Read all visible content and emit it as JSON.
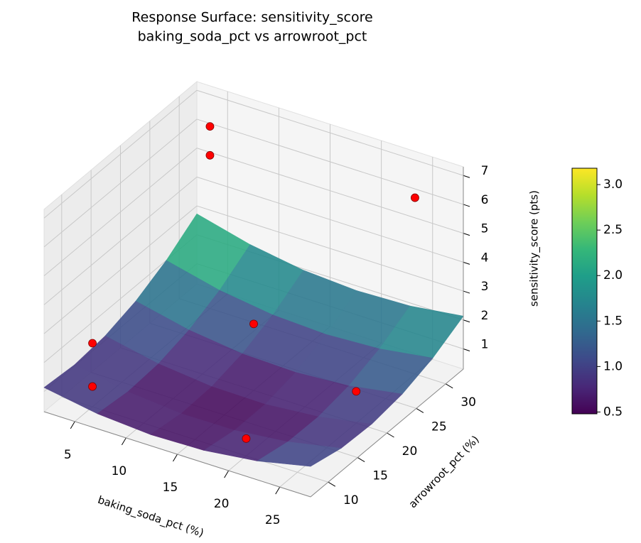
{
  "chart_data": {
    "type": "surface3d",
    "title": [
      "Response Surface: sensitivity_score",
      "baking_soda_pct vs arrowroot_pct"
    ],
    "xlabel": "baking_soda_pct (%)",
    "ylabel": "arrowroot_pct (%)",
    "zlabel": "sensitivity_score (pts)",
    "xlim": [
      2,
      28
    ],
    "ylim": [
      7,
      33
    ],
    "zlim": [
      0.3,
      7.3
    ],
    "xticks": [
      5,
      10,
      15,
      20,
      25
    ],
    "yticks": [
      10,
      15,
      20,
      25,
      30
    ],
    "zticks": [
      1,
      2,
      3,
      4,
      5,
      6,
      7
    ],
    "surface": {
      "x": [
        2,
        7.2,
        12.4,
        17.6,
        22.8,
        28
      ],
      "y": [
        7,
        12.2,
        17.4,
        22.6,
        27.8,
        33
      ],
      "z": [
        [
          1.135,
          0.821,
          0.686,
          0.73,
          0.953,
          1.353
        ],
        [
          1.042,
          0.696,
          0.528,
          0.54,
          0.73,
          1.098
        ],
        [
          1.155,
          0.777,
          0.577,
          0.555,
          0.713,
          1.049
        ],
        [
          1.473,
          1.062,
          0.83,
          0.776,
          0.902,
          1.205
        ],
        [
          1.997,
          1.554,
          1.289,
          1.203,
          1.296,
          1.567
        ],
        [
          2.726,
          2.251,
          1.953,
          1.835,
          1.895,
          2.134
        ]
      ],
      "colormap": "viridis"
    },
    "points": {
      "color": "#ff0000",
      "x": [
        5,
        5,
        25,
        15,
        5,
        5,
        20,
        25
      ],
      "y": [
        30,
        30,
        30,
        20,
        10,
        10,
        10,
        20
      ],
      "z": [
        6.6,
        5.6,
        6.4,
        2.6,
        2.5,
        1.0,
        0.9,
        1.4
      ]
    },
    "colorbar": {
      "lim": [
        0.48,
        3.18
      ],
      "ticks": [
        0.5,
        {
          "value": 1.0,
          "label": "1.0"
        },
        1.5,
        {
          "value": 2.0,
          "label": "2.0"
        },
        2.5,
        {
          "value": 3.0,
          "label": "3.0"
        }
      ]
    },
    "grid": true
  }
}
